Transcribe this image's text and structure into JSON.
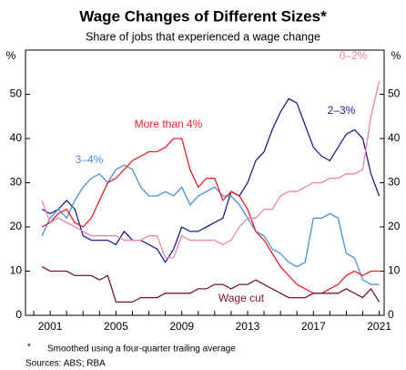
{
  "chart_data": {
    "type": "line",
    "title": "Wage Changes of Different Sizes*",
    "subtitle": "Share of jobs that experienced a wage change",
    "y_label": "%",
    "footnote_marker": "*",
    "footnote": "Smoothed using a four-quarter trailing average",
    "sources": "Sources: ABS; RBA",
    "x": [
      2000.5,
      2001,
      2001.5,
      2002,
      2002.5,
      2003,
      2003.5,
      2004,
      2004.5,
      2005,
      2005.5,
      2006,
      2006.5,
      2007,
      2007.5,
      2008,
      2008.5,
      2009,
      2009.5,
      2010,
      2010.5,
      2011,
      2011.5,
      2012,
      2012.5,
      2013,
      2013.5,
      2014,
      2014.5,
      2015,
      2015.5,
      2016,
      2016.5,
      2017,
      2017.5,
      2018,
      2018.5,
      2019,
      2019.5,
      2020,
      2020.5,
      2021
    ],
    "xlim": [
      1999.5,
      2021.3
    ],
    "xticks": [
      2001,
      2005,
      2009,
      2013,
      2017,
      2021
    ],
    "ylim": [
      0,
      60
    ],
    "yticks": [
      0,
      10,
      20,
      30,
      40,
      50
    ],
    "grid": false,
    "series": [
      {
        "name": "2–3%",
        "color": "#1a1f8c",
        "values": [
          24,
          23,
          24,
          26,
          24,
          18,
          17,
          17,
          17,
          16,
          19,
          17,
          17,
          16,
          15,
          12,
          15,
          20,
          19,
          19,
          20,
          21,
          22,
          28,
          27,
          30,
          35,
          37,
          42,
          46,
          49,
          48,
          43,
          38,
          36,
          35,
          38,
          41,
          42,
          40,
          32,
          27
        ]
      },
      {
        "name": "3–4%",
        "color": "#4a90d9",
        "values": [
          18,
          22,
          24,
          22,
          26,
          29,
          31,
          32,
          30,
          33,
          34,
          33,
          29,
          27,
          27,
          28,
          27,
          29,
          25,
          27,
          28,
          29,
          27,
          27,
          25,
          22,
          19,
          18,
          15,
          14,
          12,
          11,
          12,
          22,
          22,
          23,
          22,
          14,
          13,
          8,
          7,
          7
        ]
      },
      {
        "name": "More than 4%",
        "color": "#e8202a",
        "values": [
          20,
          21,
          23,
          24,
          21,
          20,
          22,
          26,
          30,
          31,
          33,
          35,
          36,
          37,
          37,
          38,
          40,
          40,
          33,
          29,
          31,
          31,
          26,
          28,
          27,
          24,
          19,
          17,
          14,
          11,
          9,
          7,
          6,
          5,
          5,
          6,
          7,
          9,
          10,
          9,
          10,
          10
        ]
      },
      {
        "name": "0–2%",
        "color": "#f080b0",
        "values": [
          26,
          21,
          22,
          21,
          20,
          19,
          18,
          18,
          18,
          18,
          17,
          17,
          17,
          18,
          18,
          13,
          13,
          18,
          17,
          17,
          17,
          17,
          16,
          17,
          20,
          22,
          22,
          24,
          24,
          27,
          28,
          28,
          29,
          30,
          30,
          31,
          31,
          32,
          32,
          33,
          45,
          53
        ]
      },
      {
        "name": "Wage cut",
        "color": "#7a1040",
        "values": [
          11,
          10,
          10,
          10,
          9,
          9,
          9,
          8,
          9,
          3,
          3,
          3,
          4,
          4,
          4,
          5,
          5,
          5,
          5,
          6,
          6,
          7,
          7,
          6,
          7,
          7,
          8,
          7,
          6,
          5,
          4,
          4,
          4,
          5,
          5,
          5,
          5,
          6,
          5,
          4,
          6,
          3
        ]
      }
    ]
  }
}
